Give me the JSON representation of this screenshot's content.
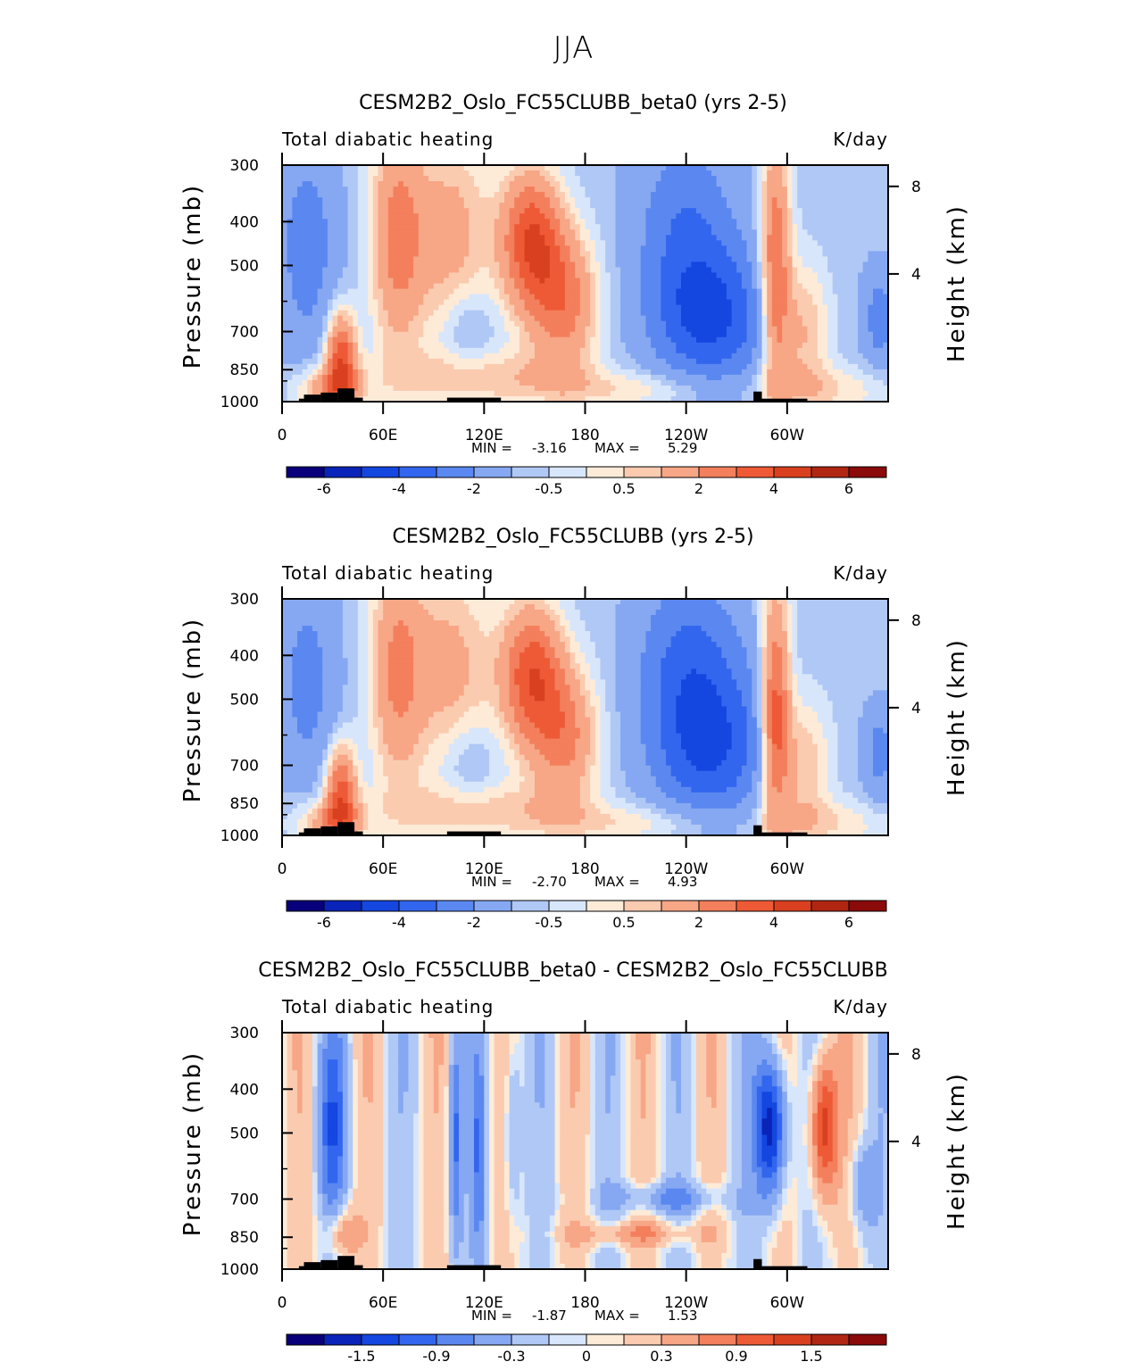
{
  "figure": {
    "title": "JJA"
  },
  "chart_data": [
    {
      "type": "heatmap",
      "title": "CESM2B2_Oslo_FC55CLUBB_beta0 (yrs 2-5)",
      "left_label": "Total diabatic heating",
      "right_label": "K/day",
      "ylabel": "Pressure (mb)",
      "ylabel_right": "Height (km)",
      "x_ticks": [
        "0",
        "60E",
        "120E",
        "180",
        "120W",
        "60W"
      ],
      "y_ticks": [
        "300",
        "400",
        "500",
        "700",
        "850",
        "1000"
      ],
      "y_right_ticks": [
        "8",
        "4"
      ],
      "xlim": [
        0,
        360
      ],
      "ylim_mb": [
        1000,
        300
      ],
      "stats": {
        "min_label": "MIN =",
        "min": "-3.16",
        "max_label": "MAX =",
        "max": "5.29"
      },
      "colorbar": {
        "labels": [
          "-6",
          "-4",
          "-2",
          "-0.5",
          "0.5",
          "2",
          "4",
          "6"
        ],
        "colors": [
          "#08007a",
          "#0a23b8",
          "#1446e0",
          "#3366ee",
          "#5a88f0",
          "#86a8f2",
          "#b0c8f6",
          "#d8e6fb",
          "#fdebd8",
          "#fbcbb0",
          "#f7a686",
          "#f37f5c",
          "#ee5a36",
          "#d9401f",
          "#b02612",
          "#8b0a0a"
        ]
      },
      "max_value": 5.29,
      "min_value": -3.16
    },
    {
      "type": "heatmap",
      "title": "CESM2B2_Oslo_FC55CLUBB (yrs 2-5)",
      "left_label": "Total diabatic heating",
      "right_label": "K/day",
      "ylabel": "Pressure (mb)",
      "ylabel_right": "Height (km)",
      "x_ticks": [
        "0",
        "60E",
        "120E",
        "180",
        "120W",
        "60W"
      ],
      "y_ticks": [
        "300",
        "400",
        "500",
        "700",
        "850",
        "1000"
      ],
      "y_right_ticks": [
        "8",
        "4"
      ],
      "xlim": [
        0,
        360
      ],
      "ylim_mb": [
        1000,
        300
      ],
      "stats": {
        "min_label": "MIN =",
        "min": "-2.70",
        "max_label": "MAX =",
        "max": "4.93"
      },
      "colorbar": {
        "labels": [
          "-6",
          "-4",
          "-2",
          "-0.5",
          "0.5",
          "2",
          "4",
          "6"
        ],
        "colors": [
          "#08007a",
          "#0a23b8",
          "#1446e0",
          "#3366ee",
          "#5a88f0",
          "#86a8f2",
          "#b0c8f6",
          "#d8e6fb",
          "#fdebd8",
          "#fbcbb0",
          "#f7a686",
          "#f37f5c",
          "#ee5a36",
          "#d9401f",
          "#b02612",
          "#8b0a0a"
        ]
      },
      "max_value": 4.93,
      "min_value": -2.7
    },
    {
      "type": "heatmap",
      "title": "CESM2B2_Oslo_FC55CLUBB_beta0 - CESM2B2_Oslo_FC55CLUBB",
      "left_label": "Total diabatic heating",
      "right_label": "K/day",
      "ylabel": "Pressure (mb)",
      "ylabel_right": "Height (km)",
      "x_ticks": [
        "0",
        "60E",
        "120E",
        "180",
        "120W",
        "60W"
      ],
      "y_ticks": [
        "300",
        "400",
        "500",
        "700",
        "850",
        "1000"
      ],
      "y_right_ticks": [
        "8",
        "4"
      ],
      "xlim": [
        0,
        360
      ],
      "ylim_mb": [
        1000,
        300
      ],
      "stats": {
        "min_label": "MIN =",
        "min": "-1.87",
        "max_label": "MAX =",
        "max": "1.53"
      },
      "colorbar": {
        "labels": [
          "-1.5",
          "-0.9",
          "-0.3",
          "0",
          "0.3",
          "0.9",
          "1.5"
        ],
        "colors": [
          "#08007a",
          "#0a23b8",
          "#1446e0",
          "#3366ee",
          "#5a88f0",
          "#86a8f2",
          "#b0c8f6",
          "#d8e6fb",
          "#fdebd8",
          "#fbcbb0",
          "#f7a686",
          "#f37f5c",
          "#ee5a36",
          "#d9401f",
          "#b02612",
          "#8b0a0a"
        ]
      },
      "max_value": 1.53,
      "min_value": -1.87
    }
  ]
}
